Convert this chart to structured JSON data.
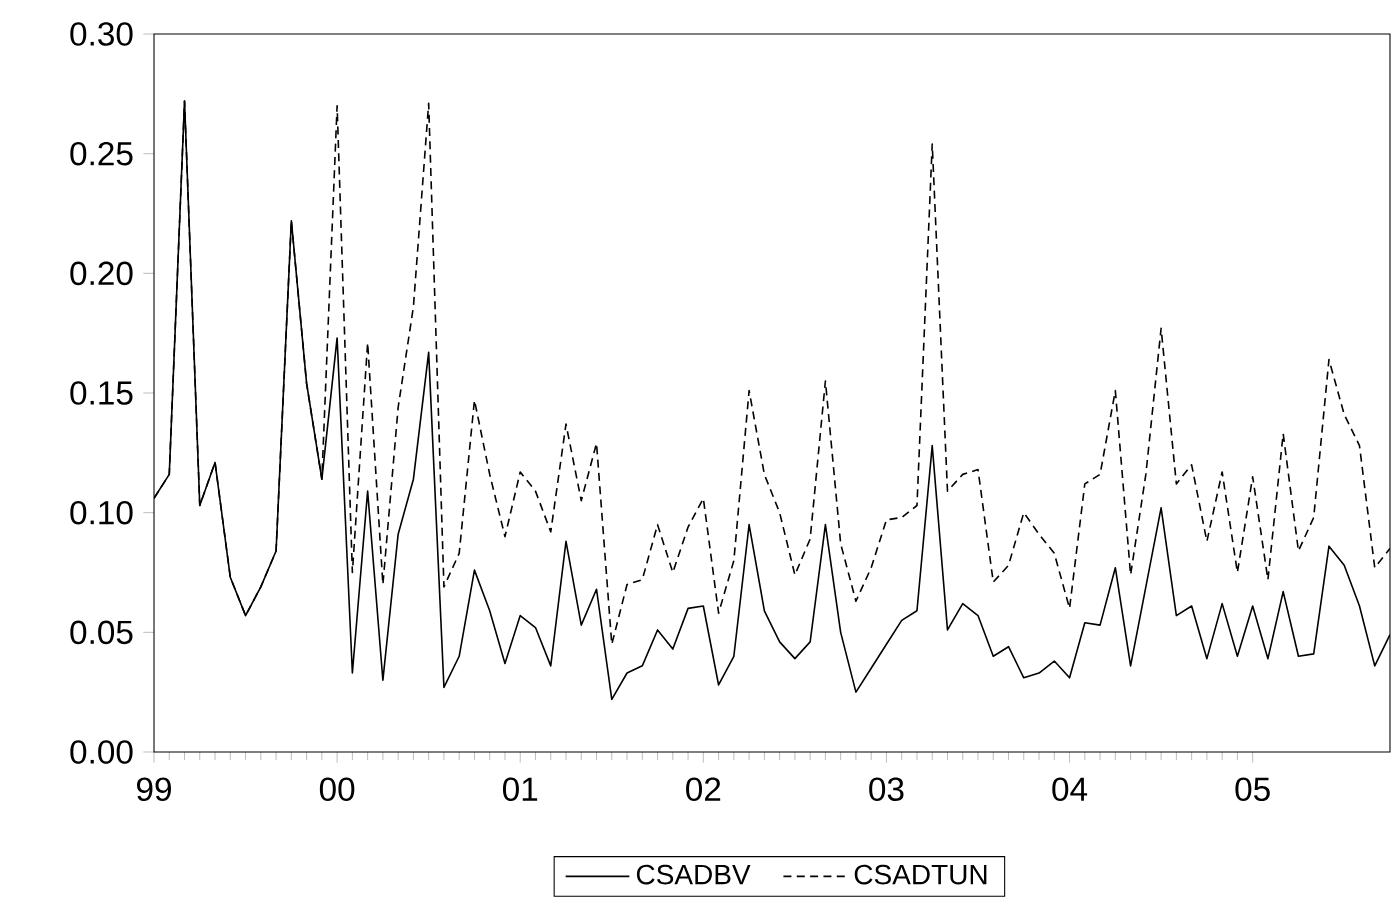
{
  "chart_data": {
    "type": "line",
    "x": [
      "1999-01",
      "1999-02",
      "1999-03",
      "1999-04",
      "1999-05",
      "1999-06",
      "1999-07",
      "1999-08",
      "1999-09",
      "1999-10",
      "1999-11",
      "1999-12",
      "2000-01",
      "2000-02",
      "2000-03",
      "2000-04",
      "2000-05",
      "2000-06",
      "2000-07",
      "2000-08",
      "2000-09",
      "2000-10",
      "2000-11",
      "2000-12",
      "2001-01",
      "2001-02",
      "2001-03",
      "2001-04",
      "2001-05",
      "2001-06",
      "2001-07",
      "2001-08",
      "2001-09",
      "2001-10",
      "2001-11",
      "2001-12",
      "2002-01",
      "2002-02",
      "2002-03",
      "2002-04",
      "2002-05",
      "2002-06",
      "2002-07",
      "2002-08",
      "2002-09",
      "2002-10",
      "2002-11",
      "2002-12",
      "2003-01",
      "2003-02",
      "2003-03",
      "2003-04",
      "2003-05",
      "2003-06",
      "2003-07",
      "2003-08",
      "2003-09",
      "2003-10",
      "2003-11",
      "2003-12",
      "2004-01",
      "2004-02",
      "2004-03",
      "2004-04",
      "2004-05",
      "2004-06",
      "2004-07",
      "2004-08",
      "2004-09",
      "2004-10",
      "2004-11",
      "2004-12",
      "2005-01",
      "2005-02",
      "2005-03",
      "2005-04",
      "2005-05",
      "2005-06",
      "2005-07",
      "2005-08",
      "2005-09",
      "2005-10"
    ],
    "series": [
      {
        "name": "CSADBV",
        "color": "#000000",
        "line_style": "solid",
        "values": [
          0.106,
          0.116,
          0.272,
          0.103,
          0.121,
          0.073,
          0.057,
          0.069,
          0.084,
          0.222,
          0.154,
          0.114,
          0.173,
          0.033,
          0.109,
          0.03,
          0.091,
          0.114,
          0.167,
          0.027,
          0.04,
          0.076,
          0.059,
          0.037,
          0.057,
          0.052,
          0.036,
          0.088,
          0.053,
          0.068,
          0.022,
          0.033,
          0.036,
          0.051,
          0.043,
          0.06,
          0.061,
          0.028,
          0.04,
          0.095,
          0.059,
          0.046,
          0.039,
          0.046,
          0.095,
          0.05,
          0.025,
          0.035,
          0.045,
          0.055,
          0.059,
          0.128,
          0.051,
          0.062,
          0.057,
          0.04,
          0.044,
          0.031,
          0.033,
          0.038,
          0.031,
          0.054,
          0.053,
          0.077,
          0.036,
          0.069,
          0.102,
          0.057,
          0.061,
          0.039,
          0.062,
          0.04,
          0.061,
          0.039,
          0.067,
          0.04,
          0.041,
          0.086,
          0.078,
          0.061,
          0.036,
          0.049
        ]
      },
      {
        "name": "CSADTUN",
        "color": "#000000",
        "line_style": "dashed",
        "values": [
          0.106,
          0.116,
          0.272,
          0.103,
          0.121,
          0.073,
          0.057,
          0.069,
          0.084,
          0.222,
          0.154,
          0.114,
          0.27,
          0.075,
          0.171,
          0.07,
          0.144,
          0.186,
          0.271,
          0.069,
          0.083,
          0.147,
          0.116,
          0.09,
          0.117,
          0.109,
          0.092,
          0.137,
          0.105,
          0.129,
          0.045,
          0.07,
          0.072,
          0.095,
          0.075,
          0.094,
          0.106,
          0.058,
          0.08,
          0.151,
          0.116,
          0.1,
          0.074,
          0.089,
          0.155,
          0.087,
          0.063,
          0.077,
          0.097,
          0.098,
          0.103,
          0.254,
          0.109,
          0.116,
          0.118,
          0.071,
          0.078,
          0.1,
          0.091,
          0.083,
          0.06,
          0.112,
          0.116,
          0.151,
          0.074,
          0.116,
          0.177,
          0.112,
          0.12,
          0.088,
          0.117,
          0.075,
          0.115,
          0.072,
          0.133,
          0.084,
          0.098,
          0.164,
          0.141,
          0.128,
          0.077,
          0.085
        ]
      }
    ],
    "xlim": [
      "1999-01",
      "2005-10"
    ],
    "xticks": [
      {
        "value": "1999-01",
        "label": "99"
      },
      {
        "value": "2000-01",
        "label": "00"
      },
      {
        "value": "2001-01",
        "label": "01"
      },
      {
        "value": "2002-01",
        "label": "02"
      },
      {
        "value": "2003-01",
        "label": "03"
      },
      {
        "value": "2004-01",
        "label": "04"
      },
      {
        "value": "2005-01",
        "label": "05"
      }
    ],
    "ylim": [
      0,
      0.3
    ],
    "yticks": [
      {
        "value": 0,
        "label": "0.00"
      },
      {
        "value": 0.05,
        "label": "0.05"
      },
      {
        "value": 0.1,
        "label": "0.10"
      },
      {
        "value": 0.15,
        "label": "0.15"
      },
      {
        "value": 0.2,
        "label": "0.20"
      },
      {
        "value": 0.25,
        "label": "0.25"
      },
      {
        "value": 0.3,
        "label": "0.30"
      }
    ],
    "grid": false,
    "legend": "bottom"
  }
}
